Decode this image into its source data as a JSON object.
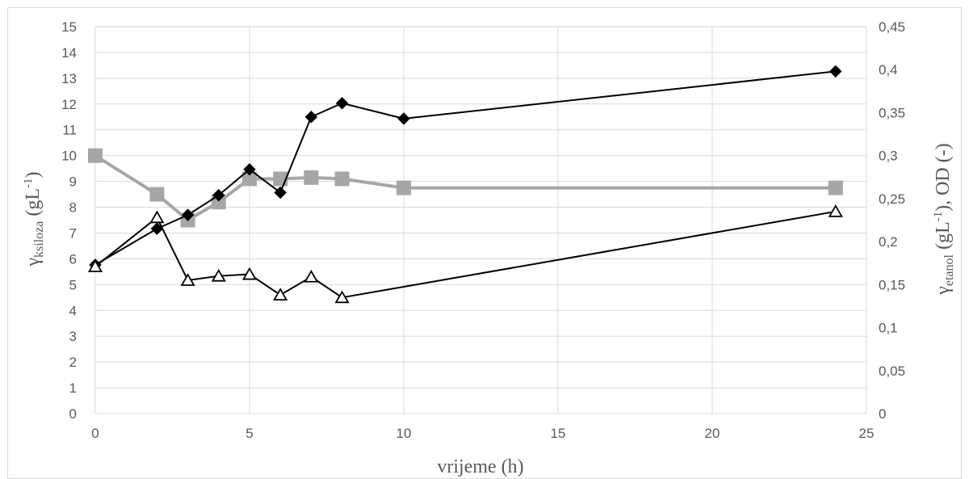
{
  "chart_data": {
    "type": "line",
    "title": "",
    "xlabel": "vrijeme (h)",
    "ylabel_left": {
      "symbol": "γ",
      "subscript": "ksiloza",
      "unit": " (gL",
      "superscript": "-1",
      "close": ")"
    },
    "ylabel_right": {
      "symbol": "γ",
      "subscript": "etanol",
      "unit": " (gL",
      "superscript": "-1",
      "rest": "), OD (-)"
    },
    "xlim": [
      0,
      25
    ],
    "ylim_left": [
      0,
      15
    ],
    "ylim_right": [
      0,
      0.45
    ],
    "x_ticks": [
      "0",
      "5",
      "10",
      "15",
      "20",
      "25"
    ],
    "y_left_ticks": [
      "0",
      "1",
      "2",
      "3",
      "4",
      "5",
      "6",
      "7",
      "8",
      "9",
      "10",
      "11",
      "12",
      "13",
      "14",
      "15"
    ],
    "y_right_ticks": [
      "0",
      "0,05",
      "0,1",
      "0,15",
      "0,2",
      "0,25",
      "0,3",
      "0,35",
      "0,4",
      "0,45"
    ],
    "grid": true,
    "legend": "none",
    "series": [
      {
        "axis": "left",
        "marker": "square",
        "color": "#a6a6a6",
        "x": [
          0,
          2,
          3,
          4,
          5,
          6,
          7,
          8,
          10,
          24
        ],
        "y": [
          10.0,
          8.5,
          7.5,
          8.2,
          9.1,
          9.1,
          9.15,
          9.1,
          8.75,
          8.75
        ]
      },
      {
        "axis": "right",
        "marker": "diamond",
        "color": "#000000",
        "x": [
          0,
          2,
          3,
          4,
          5,
          6,
          7,
          8,
          10,
          24
        ],
        "y": [
          0.173,
          0.215,
          0.231,
          0.254,
          0.284,
          0.257,
          0.345,
          0.361,
          0.343,
          0.398
        ]
      },
      {
        "axis": "right",
        "marker": "triangle",
        "color": "#000000",
        "x": [
          0,
          2,
          3,
          4,
          5,
          6,
          7,
          8,
          24
        ],
        "y": [
          0.171,
          0.228,
          0.155,
          0.16,
          0.162,
          0.138,
          0.159,
          0.135,
          0.235
        ]
      }
    ]
  }
}
